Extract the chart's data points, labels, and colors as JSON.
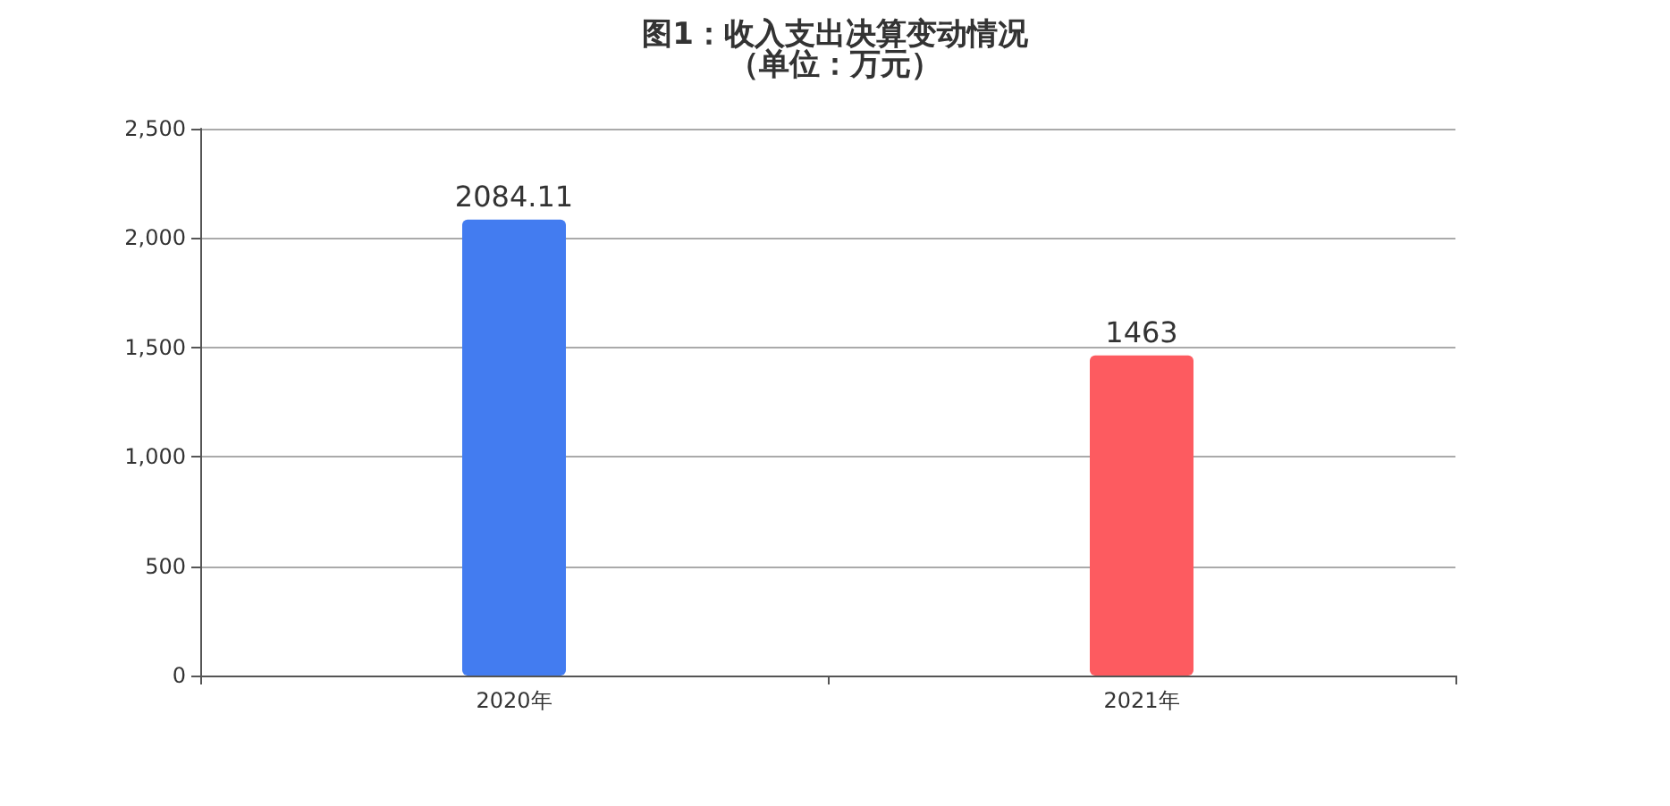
{
  "chart_data": {
    "type": "bar",
    "title": "图1：收入支出决算变动情况",
    "subtitle": "（单位：万元）",
    "categories": [
      "2020年",
      "2021年"
    ],
    "values": [
      2084.11,
      1463
    ],
    "colors": [
      "#437cf0",
      "#fd5b60"
    ],
    "ylim": [
      0,
      2500
    ],
    "yticks": [
      0,
      500,
      {
        "value": 1000,
        "label": "1,000"
      },
      {
        "value": 1500,
        "label": "1,500"
      },
      {
        "value": 2000,
        "label": "2,000"
      },
      {
        "value": 2500,
        "label": "2,500"
      }
    ],
    "grid": "y",
    "data_labels": true
  }
}
